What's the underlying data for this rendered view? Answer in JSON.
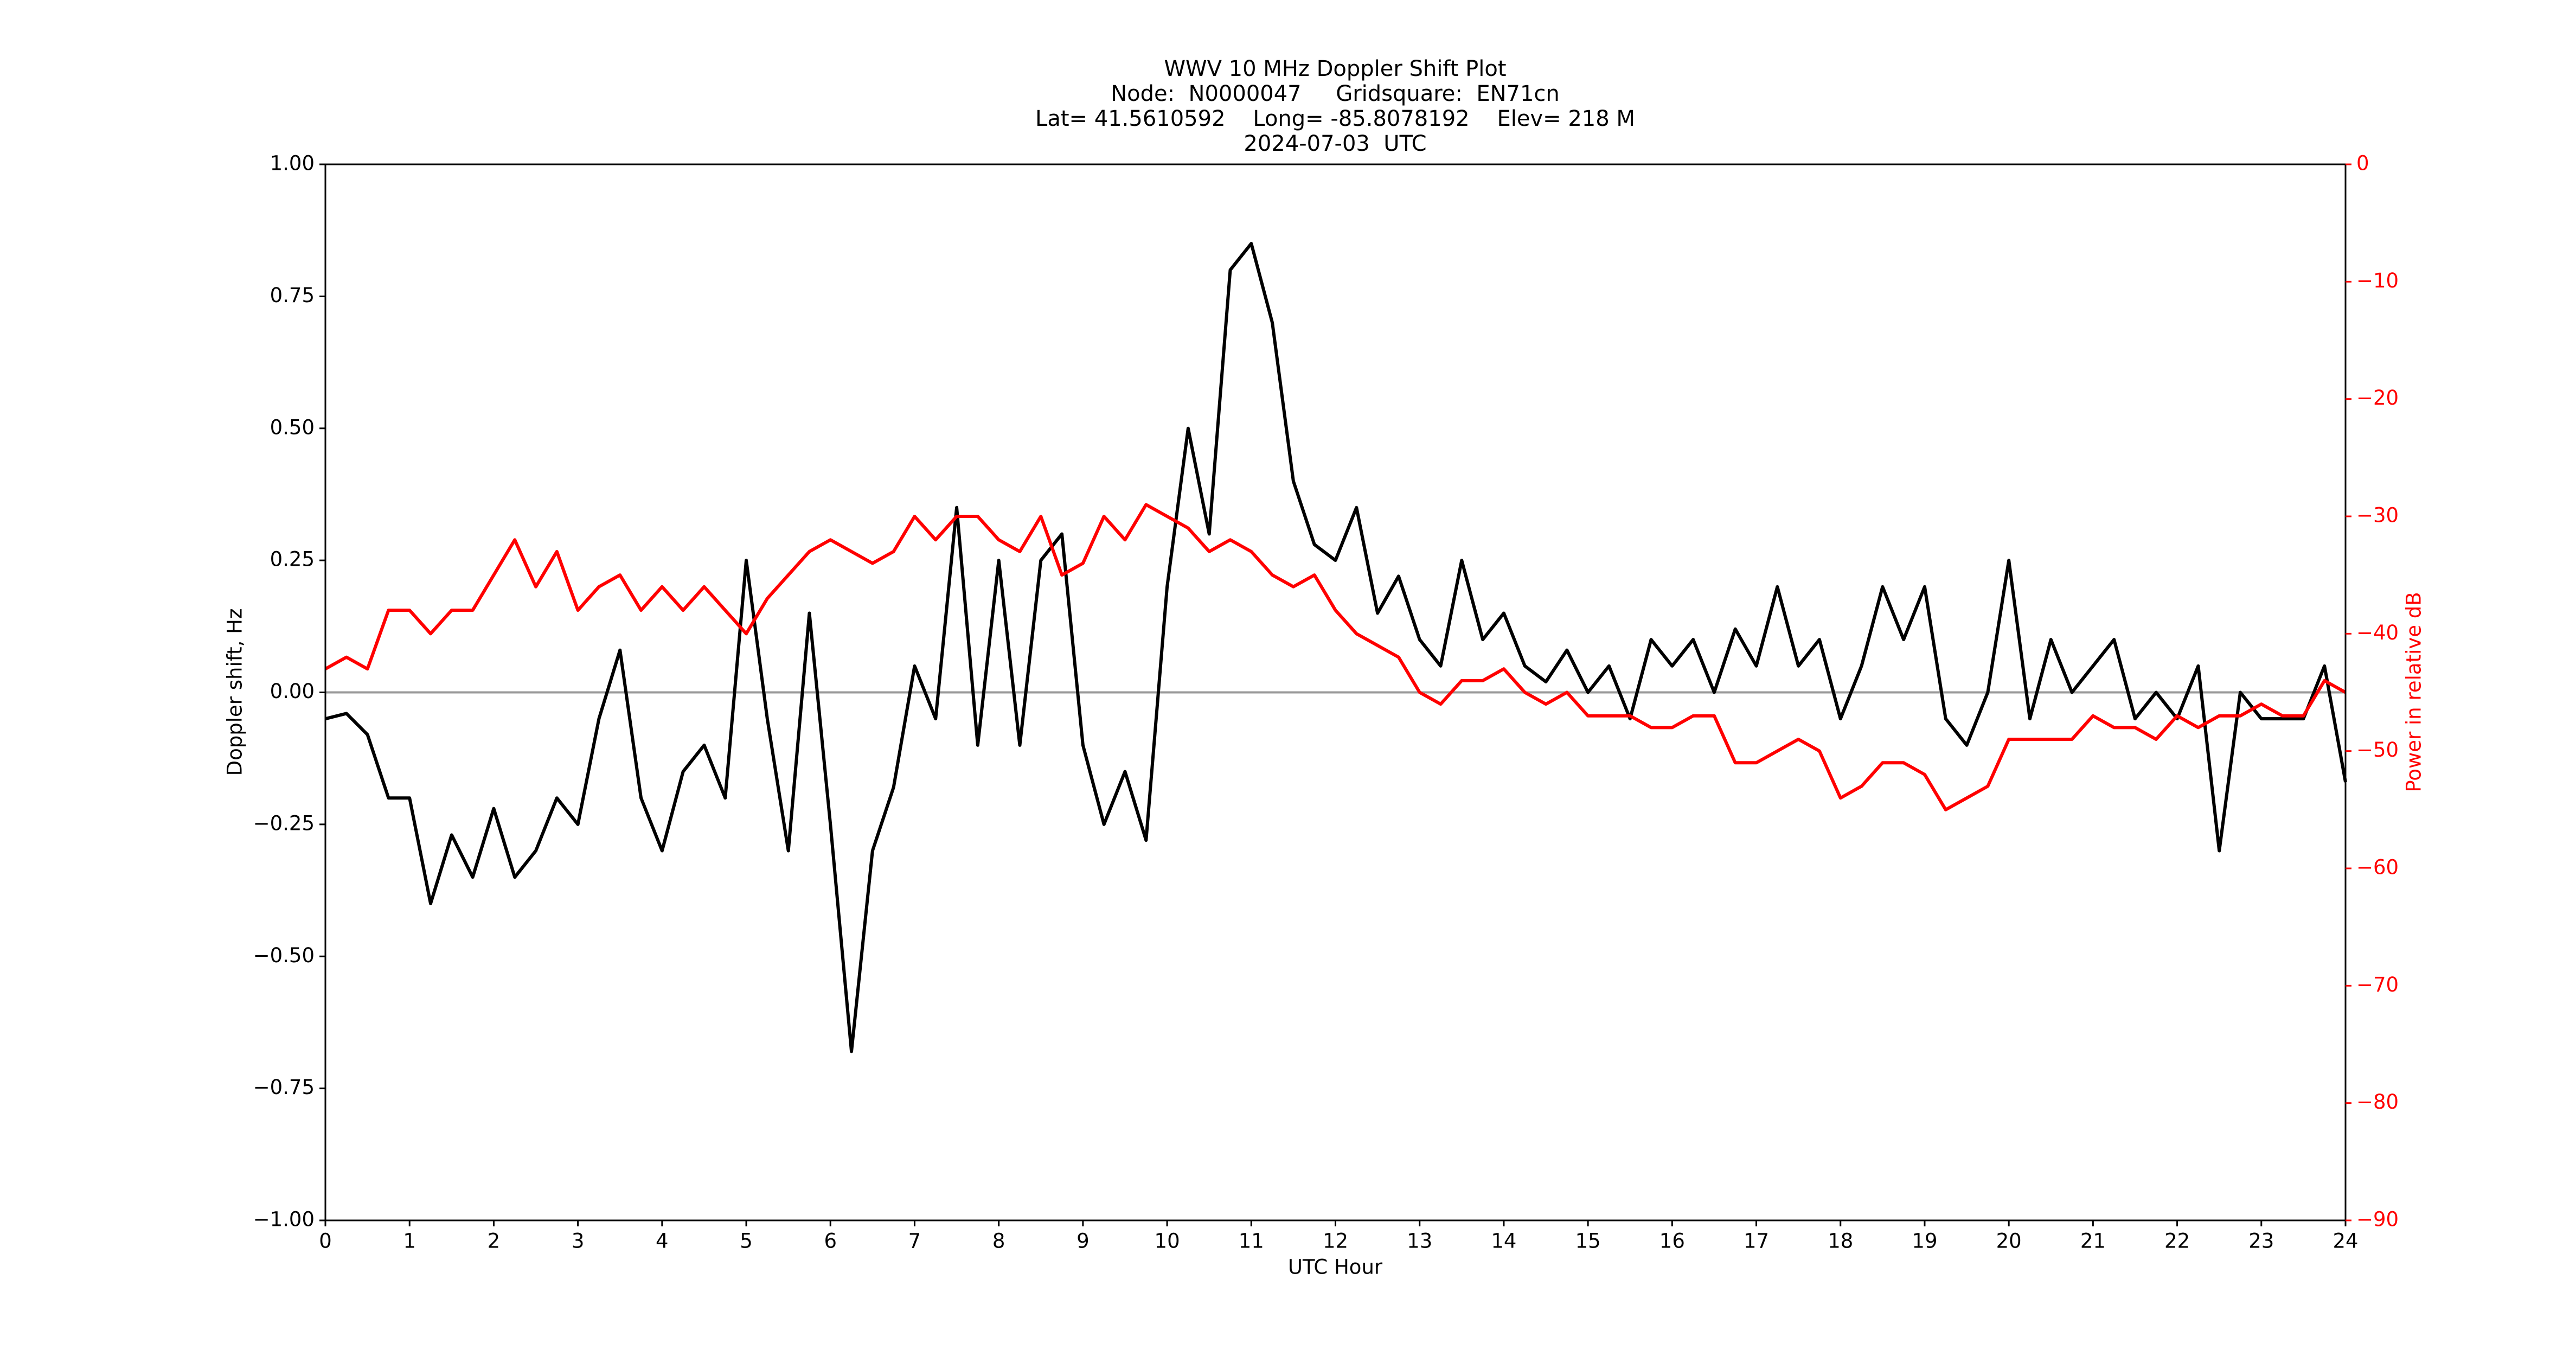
{
  "chart_data": {
    "type": "line",
    "title": [
      "WWV 10 MHz Doppler Shift Plot",
      "Node:  N0000047     Gridsquare:  EN71cn",
      "Lat= 41.5610592    Long= -85.8078192    Elev= 218 M",
      "2024-07-03  UTC"
    ],
    "xlabel": "UTC Hour",
    "ylabel": "Doppler shift, Hz",
    "y2label": "Power in relative dB",
    "x": [
      0,
      0.25,
      0.5,
      0.75,
      1,
      1.25,
      1.5,
      1.75,
      2,
      2.25,
      2.5,
      2.75,
      3,
      3.25,
      3.5,
      3.75,
      4,
      4.25,
      4.5,
      4.75,
      5,
      5.25,
      5.5,
      5.75,
      6,
      6.25,
      6.5,
      6.75,
      7,
      7.25,
      7.5,
      7.75,
      8,
      8.25,
      8.5,
      8.75,
      9,
      9.25,
      9.5,
      9.75,
      10,
      10.25,
      10.5,
      10.75,
      11,
      11.25,
      11.5,
      11.75,
      12,
      12.25,
      12.5,
      12.75,
      13,
      13.25,
      13.5,
      13.75,
      14,
      14.25,
      14.5,
      14.75,
      15,
      15.25,
      15.5,
      15.75,
      16,
      16.25,
      16.5,
      16.75,
      17,
      17.25,
      17.5,
      17.75,
      18,
      18.25,
      18.5,
      18.75,
      19,
      19.25,
      19.5,
      19.75,
      20,
      20.25,
      20.5,
      20.75,
      21,
      21.25,
      21.5,
      21.75,
      22,
      22.25,
      22.5,
      22.75,
      23,
      23.25,
      23.5,
      23.75,
      24
    ],
    "series": [
      {
        "name": "Doppler shift",
        "color": "#000000",
        "values": [
          -0.05,
          -0.04,
          -0.08,
          -0.2,
          -0.2,
          -0.4,
          -0.27,
          -0.35,
          -0.22,
          -0.35,
          -0.3,
          -0.2,
          -0.25,
          -0.05,
          0.08,
          -0.2,
          -0.3,
          -0.15,
          -0.1,
          -0.2,
          0.25,
          -0.05,
          -0.3,
          0.15,
          -0.25,
          -0.68,
          -0.3,
          -0.18,
          0.05,
          -0.05,
          0.35,
          -0.1,
          0.25,
          -0.1,
          0.25,
          0.3,
          -0.1,
          -0.25,
          -0.15,
          -0.28,
          0.2,
          0.5,
          0.3,
          0.8,
          0.85,
          0.7,
          0.4,
          0.28,
          0.25,
          0.35,
          0.15,
          0.22,
          0.1,
          0.05,
          0.25,
          0.1,
          0.15,
          0.05,
          0.02,
          0.08,
          0,
          0.05,
          -0.05,
          0.1,
          0.05,
          0.1,
          0,
          0.12,
          0.05,
          0.2,
          0.05,
          0.1,
          -0.05,
          0.05,
          0.2,
          0.1,
          0.2,
          -0.05,
          -0.1,
          0,
          0.25,
          -0.05,
          0.1,
          0,
          0.05,
          0.1,
          -0.05,
          0,
          -0.05,
          0.05,
          -0.3,
          0,
          -0.05,
          -0.05,
          -0.05,
          0.05,
          -0.17
        ]
      },
      {
        "name": "Power",
        "color": "#ff0000",
        "axis": "y2",
        "values": [
          -43,
          -42,
          -43,
          -38,
          -38,
          -40,
          -38,
          -38,
          -35,
          -32,
          -36,
          -33,
          -38,
          -36,
          -35,
          -38,
          -36,
          -38,
          -36,
          -38,
          -40,
          -37,
          -35,
          -33,
          -32,
          -33,
          -34,
          -33,
          -30,
          -32,
          -30,
          -30,
          -32,
          -33,
          -30,
          -35,
          -34,
          -30,
          -32,
          -29,
          -30,
          -31,
          -33,
          -32,
          -33,
          -35,
          -36,
          -35,
          -38,
          -40,
          -41,
          -42,
          -45,
          -46,
          -44,
          -44,
          -43,
          -45,
          -46,
          -45,
          -47,
          -47,
          -47,
          -48,
          -48,
          -47,
          -47,
          -51,
          -51,
          -50,
          -49,
          -50,
          -54,
          -53,
          -51,
          -51,
          -52,
          -55,
          -54,
          -53,
          -49,
          -49,
          -49,
          -49,
          -47,
          -48,
          -48,
          -49,
          -47,
          -48,
          -47,
          -47,
          -46,
          -47,
          -47,
          -44,
          -45
        ]
      }
    ],
    "hlines": [
      0
    ],
    "hline_color": "#999999",
    "xlim": [
      0,
      24
    ],
    "xticks": [
      0,
      1,
      2,
      3,
      4,
      5,
      6,
      7,
      8,
      9,
      10,
      11,
      12,
      13,
      14,
      15,
      16,
      17,
      18,
      19,
      20,
      21,
      22,
      23,
      24
    ],
    "ylim": [
      -1,
      1
    ],
    "yticks": [
      {
        "value": -1,
        "label": "−1.00"
      },
      {
        "value": -0.75,
        "label": "−0.75"
      },
      {
        "value": -0.5,
        "label": "−0.50"
      },
      {
        "value": -0.25,
        "label": "−0.25"
      },
      {
        "value": 0,
        "label": "0.00"
      },
      {
        "value": 0.25,
        "label": "0.25"
      },
      {
        "value": 0.5,
        "label": "0.50"
      },
      {
        "value": 0.75,
        "label": "0.75"
      },
      {
        "value": 1,
        "label": "1.00"
      }
    ],
    "y2lim": [
      -90,
      0
    ],
    "y2ticks": [
      {
        "value": -90,
        "label": "−90"
      },
      {
        "value": -80,
        "label": "−80"
      },
      {
        "value": -70,
        "label": "−70"
      },
      {
        "value": -60,
        "label": "−60"
      },
      {
        "value": -50,
        "label": "−50"
      },
      {
        "value": -40,
        "label": "−40"
      },
      {
        "value": -30,
        "label": "−30"
      },
      {
        "value": -20,
        "label": "−20"
      },
      {
        "value": -10,
        "label": "−10"
      },
      0
    ],
    "y2color": "#ff0000"
  }
}
